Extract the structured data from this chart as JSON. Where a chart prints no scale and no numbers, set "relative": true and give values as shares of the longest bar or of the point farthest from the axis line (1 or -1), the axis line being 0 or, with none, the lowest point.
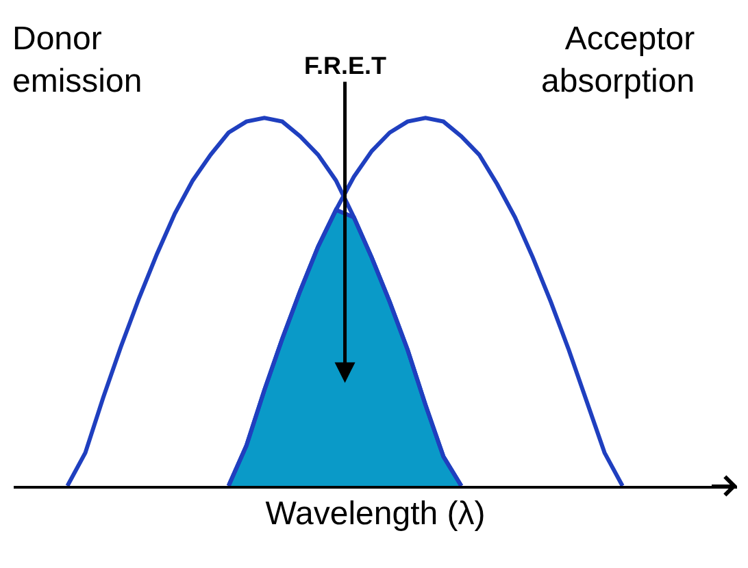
{
  "chart_data": {
    "type": "line",
    "relative": true,
    "xlabel": "Wavelength (λ)",
    "legend": false,
    "categories": [
      null,
      null,
      null,
      null,
      null,
      null,
      null,
      null,
      null,
      null,
      null,
      null,
      null,
      null,
      null,
      null,
      null,
      null,
      null,
      null,
      null,
      null,
      null,
      null,
      null,
      null,
      null,
      null,
      null,
      null,
      null,
      null,
      null,
      null,
      null,
      null,
      null,
      null,
      null,
      null,
      null
    ],
    "series": [
      {
        "name": "Donor emission",
        "color": "#1f3fbf",
        "values": [
          null,
          null,
          null,
          0,
          0.09,
          0.24,
          0.38,
          0.51,
          0.63,
          0.74,
          0.83,
          0.9,
          0.96,
          0.99,
          1,
          0.99,
          0.95,
          0.9,
          0.83,
          0.73,
          0.62,
          0.5,
          0.37,
          0.22,
          0.08,
          0,
          null,
          null,
          null,
          null,
          null,
          null,
          null,
          null,
          null,
          null,
          null,
          null,
          null,
          null,
          null
        ]
      },
      {
        "name": "Acceptor absorption",
        "color": "#1f3fbf",
        "values": [
          null,
          null,
          null,
          null,
          null,
          null,
          null,
          null,
          null,
          null,
          null,
          null,
          0,
          0.11,
          0.26,
          0.4,
          0.53,
          0.65,
          0.75,
          0.84,
          0.91,
          0.96,
          0.99,
          1,
          0.99,
          0.95,
          0.9,
          0.82,
          0.73,
          0.62,
          0.5,
          0.37,
          0.23,
          0.09,
          0,
          null,
          null,
          null,
          null,
          null,
          null
        ]
      },
      {
        "type": "area",
        "color": "#0a9ac8",
        "values": [
          null,
          null,
          null,
          null,
          null,
          null,
          null,
          null,
          null,
          null,
          null,
          null,
          0,
          0.11,
          0.26,
          0.4,
          0.53,
          0.65,
          0.75,
          0.73,
          0.62,
          0.5,
          0.37,
          0.22,
          0.08,
          0,
          null,
          null,
          null,
          null,
          null,
          null,
          null,
          null,
          null,
          null,
          null,
          null,
          null,
          null,
          null
        ]
      }
    ],
    "annotations": [
      "F.R.E.T"
    ]
  }
}
